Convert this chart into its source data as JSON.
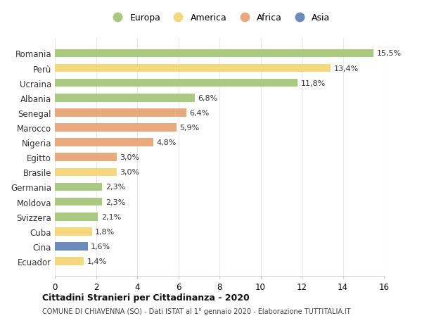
{
  "countries": [
    "Romania",
    "Perù",
    "Ucraina",
    "Albania",
    "Senegal",
    "Marocco",
    "Nigeria",
    "Egitto",
    "Brasile",
    "Germania",
    "Moldova",
    "Svizzera",
    "Cuba",
    "Cina",
    "Ecuador"
  ],
  "values": [
    15.5,
    13.4,
    11.8,
    6.8,
    6.4,
    5.9,
    4.8,
    3.0,
    3.0,
    2.3,
    2.3,
    2.1,
    1.8,
    1.6,
    1.4
  ],
  "labels": [
    "15,5%",
    "13,4%",
    "11,8%",
    "6,8%",
    "6,4%",
    "5,9%",
    "4,8%",
    "3,0%",
    "3,0%",
    "2,3%",
    "2,3%",
    "2,1%",
    "1,8%",
    "1,6%",
    "1,4%"
  ],
  "continents": [
    "Europa",
    "America",
    "Europa",
    "Europa",
    "Africa",
    "Africa",
    "Africa",
    "Africa",
    "America",
    "Europa",
    "Europa",
    "Europa",
    "America",
    "Asia",
    "America"
  ],
  "colors": {
    "Europa": "#a8c97f",
    "America": "#f5d77e",
    "Africa": "#e8a97e",
    "Asia": "#6b8cba"
  },
  "legend_order": [
    "Europa",
    "America",
    "Africa",
    "Asia"
  ],
  "xlim": [
    0,
    16
  ],
  "xticks": [
    0,
    2,
    4,
    6,
    8,
    10,
    12,
    14,
    16
  ],
  "title": "Cittadini Stranieri per Cittadinanza - 2020",
  "subtitle": "COMUNE DI CHIAVENNA (SO) - Dati ISTAT al 1° gennaio 2020 - Elaborazione TUTTITALIA.IT",
  "bg_color": "#ffffff",
  "grid_color": "#e8e8e8"
}
